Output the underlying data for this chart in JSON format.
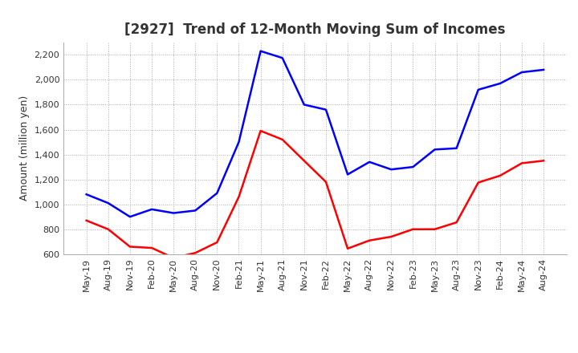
{
  "title": "[2927]  Trend of 12-Month Moving Sum of Incomes",
  "ylabel": "Amount (million yen)",
  "ylim": [
    600,
    2300
  ],
  "yticks": [
    600,
    800,
    1000,
    1200,
    1400,
    1600,
    1800,
    2000,
    2200
  ],
  "x_labels": [
    "May-19",
    "Aug-19",
    "Nov-19",
    "Feb-20",
    "May-20",
    "Aug-20",
    "Nov-20",
    "Feb-21",
    "May-21",
    "Aug-21",
    "Nov-21",
    "Feb-22",
    "May-22",
    "Aug-22",
    "Nov-22",
    "Feb-23",
    "May-23",
    "Aug-23",
    "Nov-23",
    "Feb-24",
    "May-24",
    "Aug-24"
  ],
  "ordinary_income": [
    1080,
    1010,
    900,
    960,
    930,
    950,
    1090,
    1500,
    2230,
    2175,
    1800,
    1760,
    1240,
    1340,
    1280,
    1300,
    1440,
    1450,
    1920,
    1970,
    2060,
    2080
  ],
  "net_income": [
    870,
    800,
    660,
    650,
    570,
    610,
    695,
    1060,
    1590,
    1520,
    1350,
    1180,
    645,
    710,
    740,
    800,
    800,
    855,
    1175,
    1230,
    1330,
    1350
  ],
  "ordinary_color": "#0000ff",
  "net_color": "#ff0000",
  "line_width": 1.8,
  "title_fontsize": 12,
  "label_fontsize": 9,
  "tick_fontsize": 8,
  "legend_fontsize": 10,
  "background_color": "#ffffff",
  "grid_color": "#aaaaaa"
}
